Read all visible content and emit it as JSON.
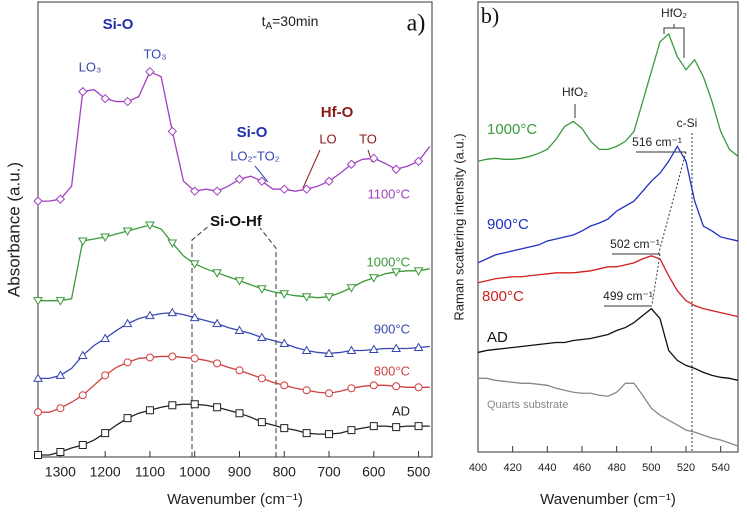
{
  "chart_data": [
    {
      "type": "line",
      "xlabel": "Wavenumber (cm⁻¹)",
      "ylabel": "Absorbance (a.u.)",
      "xlim": [
        1350,
        470
      ],
      "ylim": [
        0,
        45.7
      ],
      "xticks": [
        1300,
        1200,
        1100,
        1000,
        900,
        800,
        700,
        600,
        500
      ],
      "x": [
        1350,
        1325,
        1300,
        1275,
        1250,
        1225,
        1200,
        1175,
        1150,
        1125,
        1100,
        1075,
        1050,
        1025,
        1000,
        975,
        950,
        925,
        900,
        875,
        850,
        825,
        800,
        775,
        750,
        725,
        700,
        675,
        650,
        625,
        600,
        575,
        550,
        525,
        500,
        475
      ],
      "series": [
        {
          "name": "1100°C",
          "color": "#a040c0",
          "marker": "diamond",
          "values": [
            25.7,
            25.7,
            25.9,
            27.2,
            36.7,
            36.9,
            36,
            35.7,
            35.7,
            36.2,
            38.7,
            38.2,
            32.7,
            27.7,
            26.7,
            26.9,
            26.7,
            27.2,
            27.9,
            28.2,
            27.7,
            26.9,
            26.9,
            26.7,
            26.9,
            27.2,
            27.7,
            28.5,
            29.4,
            29.9,
            30,
            29.5,
            28.9,
            29.2,
            29.7,
            31.2
          ]
        },
        {
          "name": "1000°C",
          "color": "#3a9a3a",
          "marker": "triangle-down",
          "values": [
            15.7,
            15.7,
            15.7,
            15.9,
            21.7,
            21.9,
            22.1,
            22.4,
            22.7,
            23,
            23.3,
            22.9,
            21.5,
            20.2,
            19.4,
            18.9,
            18.5,
            18.1,
            17.7,
            17.3,
            16.9,
            16.6,
            16.4,
            16.2,
            16.1,
            16,
            16.1,
            16.5,
            17,
            17.6,
            18,
            18.4,
            18.6,
            18.7,
            18.7,
            18.9
          ]
        },
        {
          "name": "900°C",
          "color": "#3848b0",
          "marker": "triangle-up",
          "values": [
            7.9,
            7.9,
            8.2,
            8.9,
            10.2,
            11.2,
            11.9,
            12.7,
            13.4,
            13.9,
            14.2,
            14.4,
            14.5,
            14.3,
            14,
            13.7,
            13.4,
            13,
            12.7,
            12.4,
            12,
            11.7,
            11.4,
            11,
            10.7,
            10.5,
            10.4,
            10.5,
            10.7,
            10.7,
            10.8,
            10.9,
            10.9,
            10.9,
            11,
            11.1
          ]
        },
        {
          "name": "800°C",
          "color": "#d04040",
          "marker": "circle",
          "values": [
            4.5,
            4.5,
            4.9,
            5.5,
            6.2,
            7.2,
            8.2,
            9,
            9.5,
            9.9,
            10,
            10.1,
            10.1,
            10,
            9.9,
            9.7,
            9.4,
            9,
            8.7,
            8.3,
            7.9,
            7.5,
            7.2,
            6.9,
            6.7,
            6.5,
            6.4,
            6.6,
            6.9,
            7.1,
            7.2,
            7.2,
            7.1,
            7,
            7,
            7
          ]
        },
        {
          "name": "AD",
          "color": "#222222",
          "marker": "square",
          "values": [
            0.2,
            0.2,
            0.5,
            0.9,
            1.2,
            1.7,
            2.4,
            3.2,
            3.9,
            4.4,
            4.7,
            5,
            5.2,
            5.3,
            5.3,
            5.2,
            5,
            4.7,
            4.4,
            4,
            3.5,
            3.2,
            2.9,
            2.7,
            2.4,
            2.3,
            2.3,
            2.4,
            2.7,
            2.9,
            3.1,
            3.1,
            3,
            3.1,
            3.1,
            3.1
          ]
        }
      ],
      "annotations": [
        {
          "text": "Si-O"
        },
        {
          "text": "LO₃"
        },
        {
          "text": "TO₃"
        },
        {
          "text": "t",
          "sub": "A",
          "tail": "=30min"
        },
        {
          "text": "a)"
        },
        {
          "text": "Si-O"
        },
        {
          "text": "LO₂-TO₂"
        },
        {
          "text": "Hf-O"
        },
        {
          "text": "LO"
        },
        {
          "text": "TO"
        },
        {
          "text": "Si-O-Hf"
        }
      ]
    },
    {
      "type": "line",
      "xlabel": "Wavenumber (cm⁻¹)",
      "ylabel": "Raman scattering intensity (a.u.)",
      "xlim": [
        400,
        550
      ],
      "ylim": [
        0,
        45.2
      ],
      "xticks": [
        400,
        420,
        440,
        460,
        480,
        500,
        520,
        540
      ],
      "x": [
        400,
        405,
        410,
        415,
        420,
        425,
        430,
        435,
        440,
        445,
        450,
        455,
        460,
        465,
        470,
        475,
        480,
        485,
        490,
        495,
        500,
        505,
        510,
        515,
        520,
        525,
        530,
        535,
        540,
        545,
        550
      ],
      "series": [
        {
          "name": "1000°C",
          "color": "#3a9a3a",
          "values": [
            29.2,
            29.4,
            29.5,
            29.4,
            29.4,
            29.5,
            29.7,
            30,
            30.4,
            31.4,
            32.7,
            33.2,
            32.5,
            31.2,
            30.4,
            30.4,
            30.7,
            31.2,
            32.2,
            35.2,
            38.2,
            41.2,
            42,
            39.7,
            38.4,
            39.4,
            37.7,
            35.2,
            32.2,
            30.4,
            29.7
          ]
        },
        {
          "name": "900°C",
          "color": "#2030c0",
          "values": [
            19,
            19.4,
            19.8,
            20,
            20.2,
            20.4,
            20.6,
            20.8,
            21.2,
            21.4,
            21.6,
            21.8,
            22.2,
            22.7,
            23,
            23.4,
            24.2,
            24.7,
            25.2,
            26.2,
            27.2,
            28,
            29.2,
            30.7,
            29.2,
            25.2,
            22.7,
            22.2,
            21.6,
            21.4,
            21.2
          ]
        },
        {
          "name": "800°C",
          "color": "#d02020",
          "values": [
            17,
            17.2,
            17.4,
            17.5,
            17.6,
            17.6,
            17.7,
            17.8,
            17.9,
            18,
            18,
            18,
            18.1,
            18.2,
            18.4,
            18.6,
            18.6,
            18.8,
            19,
            19.4,
            19.7,
            19.4,
            17.7,
            16.2,
            15.2,
            14.7,
            14.4,
            14.2,
            14,
            13.8,
            13.6
          ]
        },
        {
          "name": "AD",
          "color": "#111111",
          "values": [
            10,
            10.2,
            10.3,
            10.4,
            10.5,
            10.6,
            10.7,
            10.8,
            10.9,
            11,
            11,
            11.2,
            11.3,
            11.4,
            11.6,
            11.8,
            12.2,
            12.5,
            13,
            13.7,
            14.4,
            13.4,
            10.2,
            9.2,
            8.7,
            8.4,
            8,
            7.7,
            7.5,
            7.4,
            7.2
          ]
        },
        {
          "name": "Quarts substrate",
          "color": "#888888",
          "values": [
            7.4,
            7.4,
            7.2,
            7.1,
            7,
            6.9,
            6.9,
            6.8,
            6.7,
            6.4,
            6.2,
            6,
            5.9,
            5.9,
            5.7,
            5.6,
            6,
            6.9,
            6.9,
            5.7,
            4.4,
            3.7,
            3.2,
            2.7,
            2.2,
            2,
            1.7,
            1.4,
            1.2,
            0.9,
            0.6
          ]
        }
      ],
      "annotations": [
        {
          "text": "b)"
        },
        {
          "text": "HfO₂"
        },
        {
          "text": "HfO₂"
        },
        {
          "text": "c-Si"
        },
        {
          "text": "516 cm⁻¹"
        },
        {
          "text": "502 cm⁻¹"
        },
        {
          "text": "499 cm⁻¹"
        }
      ]
    }
  ]
}
